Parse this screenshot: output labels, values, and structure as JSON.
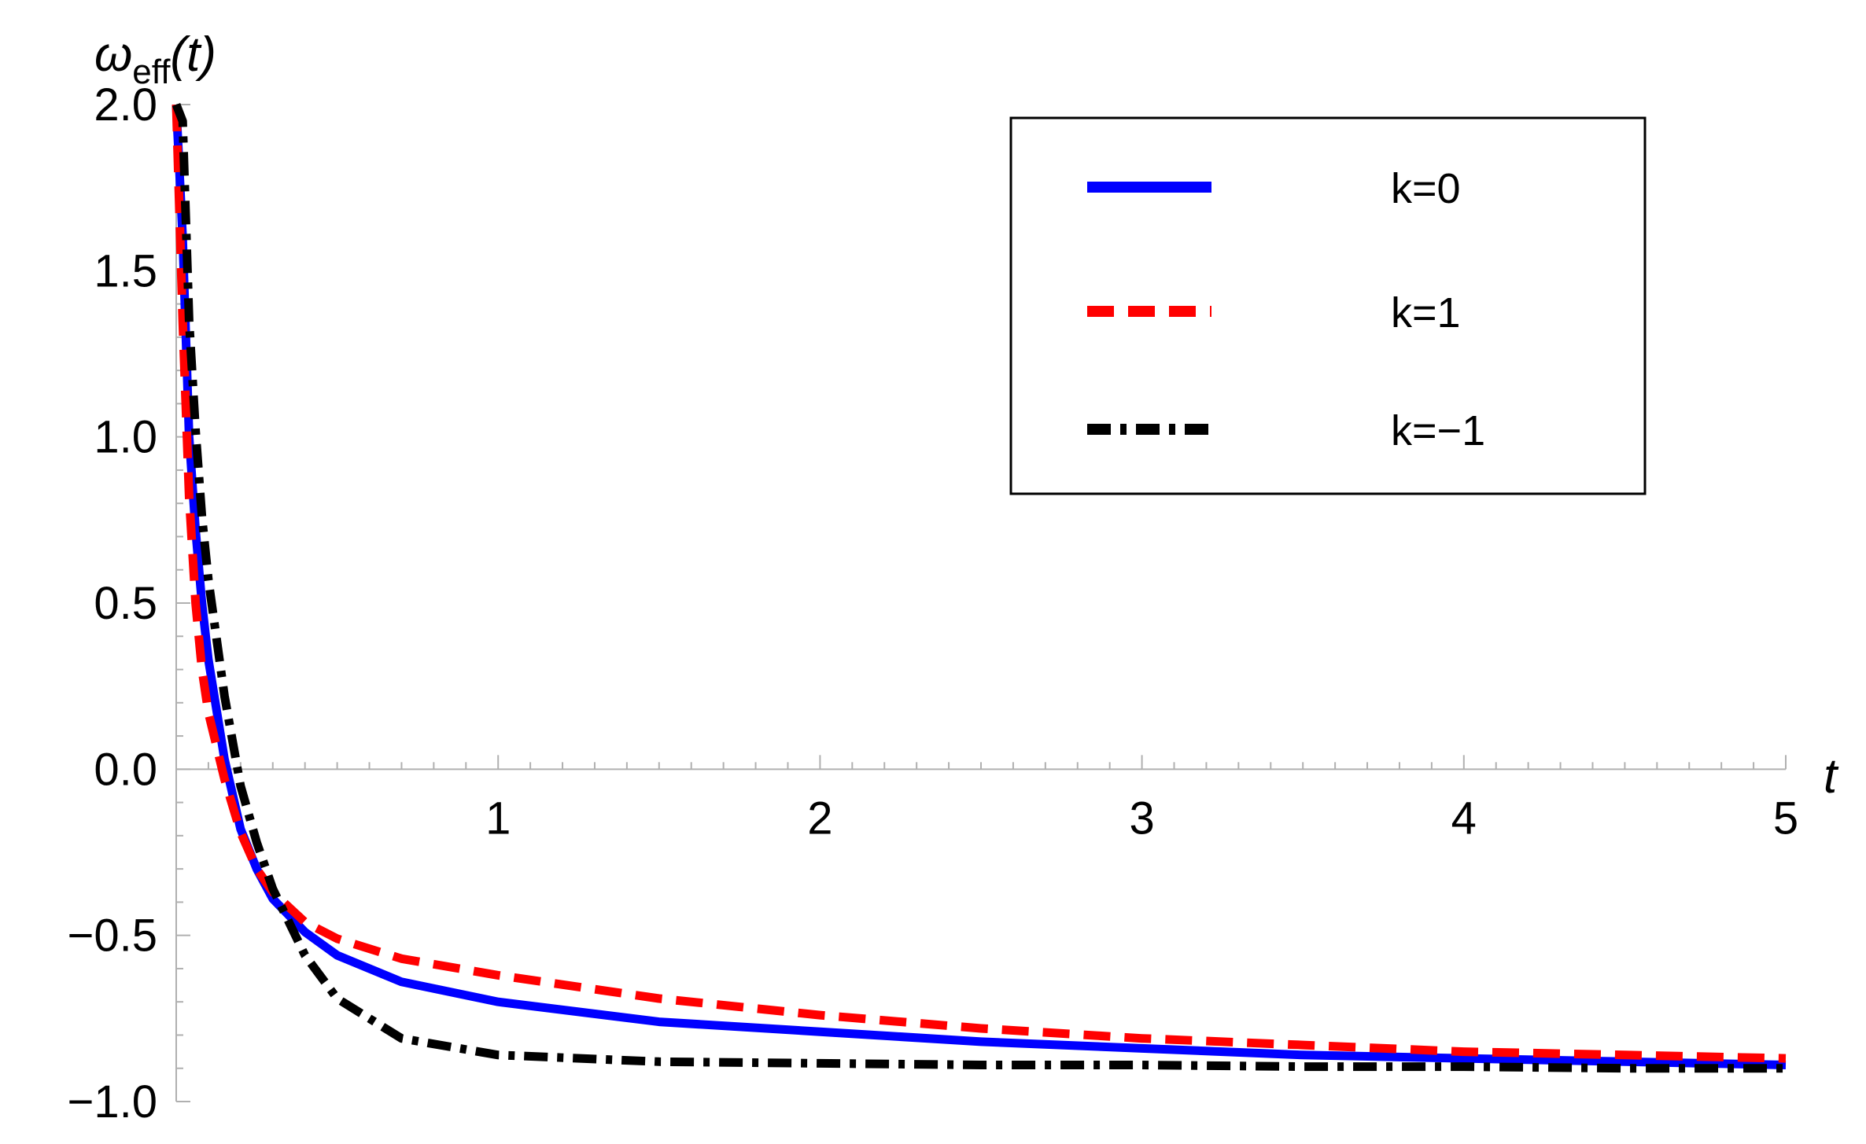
{
  "chart_data": {
    "type": "line",
    "xlabel": "t",
    "ylabel": {
      "symbol": "ω",
      "subscript": "eff",
      "argument": "(t)"
    },
    "xlim": [
      0.0,
      5.0
    ],
    "ylim": [
      -1.0,
      2.0
    ],
    "x_ticks": [
      {
        "value": 1,
        "label": "1"
      },
      {
        "value": 2,
        "label": "2"
      },
      {
        "value": 3,
        "label": "3"
      },
      {
        "value": 4,
        "label": "4"
      },
      {
        "value": 5,
        "label": "5"
      }
    ],
    "y_ticks": [
      {
        "value": 2.0,
        "label": "2.0"
      },
      {
        "value": 1.5,
        "label": "1.5"
      },
      {
        "value": 1.0,
        "label": "1.0"
      },
      {
        "value": 0.5,
        "label": "0.5"
      },
      {
        "value": 0.0,
        "label": "0.0"
      },
      {
        "value": -0.5,
        "label": "−0.5"
      },
      {
        "value": -1.0,
        "label": "−1.0"
      }
    ],
    "grid": false,
    "legend": {
      "position": "top-right",
      "framed": true
    },
    "series": [
      {
        "name": "k=0",
        "color": "#0000ff",
        "dash": "solid",
        "x": [
          0.0,
          0.02,
          0.04,
          0.06,
          0.08,
          0.1,
          0.15,
          0.2,
          0.25,
          0.3,
          0.4,
          0.5,
          0.7,
          1.0,
          1.5,
          2.0,
          2.5,
          3.0,
          3.5,
          4.0,
          4.5,
          5.0
        ],
        "y": [
          2.0,
          1.6,
          1.0,
          0.72,
          0.5,
          0.33,
          0.03,
          -0.18,
          -0.3,
          -0.39,
          -0.49,
          -0.56,
          -0.64,
          -0.7,
          -0.76,
          -0.79,
          -0.82,
          -0.84,
          -0.86,
          -0.87,
          -0.88,
          -0.89
        ]
      },
      {
        "name": "k=1",
        "color": "#ff0000",
        "dash": "dashed",
        "x": [
          0.0,
          0.02,
          0.04,
          0.06,
          0.08,
          0.1,
          0.15,
          0.2,
          0.25,
          0.3,
          0.4,
          0.5,
          0.7,
          1.0,
          1.5,
          2.0,
          2.5,
          3.0,
          3.5,
          4.0,
          4.5,
          5.0
        ],
        "y": [
          2.0,
          1.35,
          0.82,
          0.5,
          0.3,
          0.17,
          -0.03,
          -0.19,
          -0.3,
          -0.37,
          -0.46,
          -0.51,
          -0.57,
          -0.62,
          -0.69,
          -0.74,
          -0.78,
          -0.81,
          -0.83,
          -0.85,
          -0.86,
          -0.87
        ]
      },
      {
        "name": "k=−1",
        "color": "#000000",
        "dash": "dashdot",
        "x": [
          0.0,
          0.02,
          0.04,
          0.06,
          0.08,
          0.1,
          0.15,
          0.2,
          0.25,
          0.3,
          0.4,
          0.5,
          0.7,
          1.0,
          1.5,
          2.0,
          2.5,
          3.0,
          3.5,
          4.0,
          4.5,
          5.0
        ],
        "y": [
          2.0,
          1.95,
          1.35,
          1.02,
          0.76,
          0.57,
          0.22,
          -0.05,
          -0.22,
          -0.36,
          -0.56,
          -0.69,
          -0.81,
          -0.86,
          -0.88,
          -0.885,
          -0.89,
          -0.89,
          -0.895,
          -0.895,
          -0.9,
          -0.9
        ]
      }
    ]
  }
}
